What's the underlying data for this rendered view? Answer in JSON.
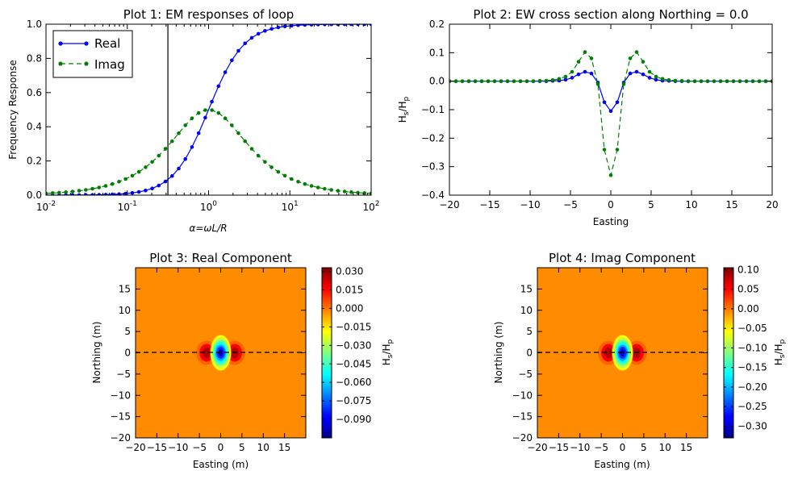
{
  "chart_data": [
    {
      "id": "plot1",
      "type": "line",
      "title": "Plot 1: EM responses of loop",
      "xlabel": "α=ωL/R",
      "ylabel": "Frequency Response",
      "xscale": "log",
      "xlim": [
        0.01,
        100
      ],
      "ylim": [
        0,
        1.0
      ],
      "xticks": [
        {
          "v": 0.01,
          "label": "10-2"
        },
        {
          "v": 0.1,
          "label": "10-1"
        },
        {
          "v": 1,
          "label": "100"
        },
        {
          "v": 10,
          "label": "101"
        },
        {
          "v": 100,
          "label": "102"
        }
      ],
      "yticks": [
        "0.0",
        "0.2",
        "0.4",
        "0.6",
        "0.8",
        "1.0"
      ],
      "vline_x": 0.316,
      "legend_position": "top-left",
      "series": [
        {
          "name": "Real",
          "color": "#0000ff",
          "style": "solid",
          "formula": "a^2/(1+a^2)"
        },
        {
          "name": "Imag",
          "color": "#008000",
          "style": "dashed",
          "formula": "a/(1+a^2)"
        }
      ],
      "x_samples": "50 log-spaced points from 0.01 to 100"
    },
    {
      "id": "plot2",
      "type": "line",
      "title": "Plot 2: EW cross section along Northing = 0.0",
      "xlabel": "Easting",
      "ylabel": "Hs/Hp",
      "xlim": [
        -20,
        20
      ],
      "ylim": [
        -0.4,
        0.2
      ],
      "xticks": [
        "−20",
        "−15",
        "−10",
        "−5",
        "0",
        "5",
        "10",
        "15",
        "20"
      ],
      "yticks": [
        "−0.4",
        "−0.3",
        "−0.2",
        "−0.1",
        "0.0",
        "0.1",
        "0.2"
      ],
      "x": [
        -20,
        -19.2,
        -18.4,
        -17.6,
        -16.8,
        -16,
        -15.2,
        -14.4,
        -13.6,
        -12.8,
        -12,
        -11.2,
        -10.4,
        -9.6,
        -8.8,
        -8,
        -7.2,
        -6.4,
        -5.6,
        -4.8,
        -4,
        -3.2,
        -2.4,
        -1.6,
        -0.8,
        0,
        0.8,
        1.6,
        2.4,
        3.2,
        4,
        4.8,
        5.6,
        6.4,
        7.2,
        8,
        8.8,
        9.6,
        10.4,
        11.2,
        12,
        12.8,
        13.6,
        14.4,
        15.2,
        16,
        16.8,
        17.6,
        18.4,
        19.2,
        20
      ],
      "series": [
        {
          "name": "",
          "color": "#0000ff",
          "style": "solid",
          "values": [
            0,
            0,
            0,
            0,
            0,
            0,
            0,
            0,
            0,
            0,
            0,
            0,
            0,
            0,
            0,
            0,
            0.001,
            0.002,
            0.005,
            0.012,
            0.024,
            0.033,
            0.027,
            -0.005,
            -0.074,
            -0.105,
            -0.074,
            -0.005,
            0.027,
            0.033,
            0.024,
            0.012,
            0.005,
            0.002,
            0.001,
            0,
            0,
            0,
            0,
            0,
            0,
            0,
            0,
            0,
            0,
            0,
            0,
            0,
            0,
            0,
            0
          ]
        },
        {
          "name": "",
          "color": "#008000",
          "style": "dashed",
          "values": [
            0,
            0,
            0,
            0,
            0,
            0,
            0,
            0,
            0,
            0,
            0,
            0,
            0,
            0,
            0.001,
            0.002,
            0.004,
            0.008,
            0.016,
            0.033,
            0.068,
            0.102,
            0.08,
            -0.01,
            -0.24,
            -0.33,
            -0.24,
            -0.01,
            0.08,
            0.102,
            0.068,
            0.033,
            0.016,
            0.008,
            0.004,
            0.002,
            0.001,
            0,
            0,
            0,
            0,
            0,
            0,
            0,
            0,
            0,
            0,
            0,
            0,
            0,
            0
          ]
        }
      ]
    },
    {
      "id": "plot3",
      "type": "heatmap",
      "title": "Plot 3: Real Component",
      "xlabel": "Easting (m)",
      "ylabel": "Northing (m)",
      "xlim": [
        -20,
        20
      ],
      "ylim": [
        -20,
        20
      ],
      "xticks": [
        "−20",
        "−15",
        "−10",
        "−5",
        "0",
        "5",
        "10",
        "15"
      ],
      "yticks": [
        "−20",
        "−15",
        "−10",
        "−5",
        "0",
        "5",
        "10",
        "15"
      ],
      "profile_line_y": 0,
      "colormap": "jet",
      "vmin": -0.105,
      "vmax": 0.033,
      "colorbar_label": "Hs/Hp",
      "colorbar_ticks": [
        "0.030",
        "0.015",
        "0.000",
        "−0.015",
        "−0.030",
        "−0.045",
        "−0.060",
        "−0.075",
        "−0.090"
      ],
      "colorbar_values": [
        0.03,
        0.015,
        0.0,
        -0.015,
        -0.03,
        -0.045,
        -0.06,
        -0.075,
        -0.09
      ]
    },
    {
      "id": "plot4",
      "type": "heatmap",
      "title": "Plot 4: Imag Component",
      "xlabel": "Easting (m)",
      "ylabel": "Northing (m)",
      "xlim": [
        -20,
        20
      ],
      "ylim": [
        -20,
        20
      ],
      "xticks": [
        "−20",
        "−15",
        "−10",
        "−5",
        "0",
        "5",
        "10",
        "15"
      ],
      "yticks": [
        "−20",
        "−15",
        "−10",
        "−5",
        "0",
        "5",
        "10",
        "15"
      ],
      "profile_line_y": 0,
      "colormap": "jet",
      "vmin": -0.33,
      "vmax": 0.105,
      "colorbar_label": "Hs/Hp",
      "colorbar_ticks": [
        "0.10",
        "0.05",
        "0.00",
        "−0.05",
        "−0.10",
        "−0.15",
        "−0.20",
        "−0.25",
        "−0.30"
      ],
      "colorbar_values": [
        0.1,
        0.05,
        0.0,
        -0.05,
        -0.1,
        -0.15,
        -0.2,
        -0.25,
        -0.3
      ]
    }
  ]
}
